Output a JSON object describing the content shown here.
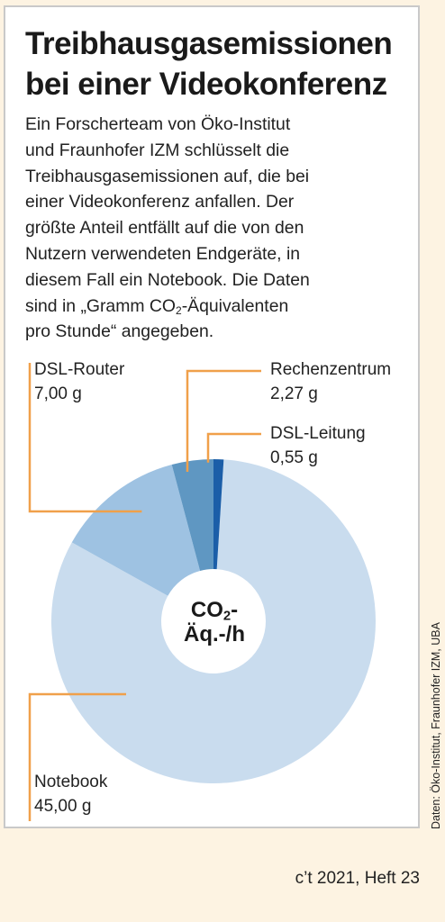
{
  "title_lines": [
    "Treibhausgasemissionen",
    "bei einer Videokonferenz"
  ],
  "intro_lines": [
    "Ein Forscherteam von Öko-Institut",
    "und Fraunhofer IZM schlüsselt die",
    "Treibhausgasemissionen auf, die bei",
    "einer Videokonferenz anfallen. Der",
    "größte Anteil entfällt auf die von den",
    "Nutzern verwendeten Endgeräte, in",
    "diesem Fall ein Notebook. Die Daten",
    "sind in „Gramm CO",
    "2",
    "-Äquivalenten",
    "pro Stunde“ angegeben."
  ],
  "center_label": {
    "co": "CO",
    "sub": "2",
    "dash": "-",
    "line2": "Äq.-/h"
  },
  "source": "Daten: Öko-Institut, Fraunhofer IZM, UBA",
  "footer": "c’t 2021, Heft 23",
  "colors": {
    "background": "#fdf3e2",
    "leader_lines": "#f0a04a",
    "notebook": "#c9dcee",
    "dsl_router": "#9ec2e2",
    "rechenzentrum": "#5f97c2",
    "dsl_leitung": "#1b5ea8"
  },
  "chart_data": {
    "type": "pie",
    "style": "donut",
    "unit": "g",
    "slices": [
      {
        "name": "Notebook",
        "value": 45.0,
        "label": "45,00 g",
        "color": "#c9dcee"
      },
      {
        "name": "DSL-Router",
        "value": 7.0,
        "label": "7,00 g",
        "color": "#9ec2e2"
      },
      {
        "name": "Rechenzentrum",
        "value": 2.27,
        "label": "2,27 g",
        "color": "#5f97c2"
      },
      {
        "name": "DSL-Leitung",
        "value": 0.55,
        "label": "0,55 g",
        "color": "#1b5ea8"
      }
    ]
  }
}
